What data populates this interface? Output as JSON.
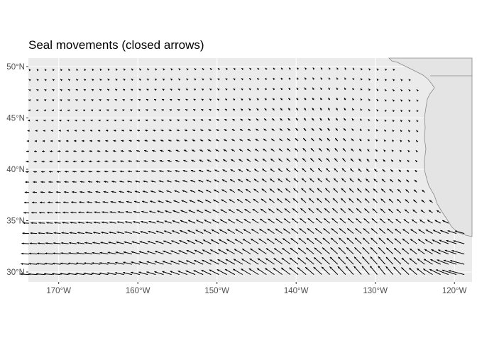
{
  "chart_data": {
    "type": "vector-field",
    "title": "Seal movements (closed arrows)",
    "xlabel": "",
    "ylabel": "",
    "x_ticks": [
      "170°W",
      "160°W",
      "150°W",
      "140°W",
      "130°W",
      "120°W"
    ],
    "x_tick_values": [
      -170,
      -160,
      -150,
      -140,
      -130,
      -120
    ],
    "y_ticks": [
      "30°N",
      "35°N",
      "40°N",
      "45°N",
      "50°N"
    ],
    "y_tick_values": [
      30,
      35,
      40,
      45,
      50
    ],
    "xlim": [
      -174.4,
      -117.7
    ],
    "ylim": [
      29.1,
      50.8
    ],
    "grid": true,
    "arrow_type": "closed",
    "lat_values": [
      29.75,
      30.75,
      31.75,
      32.75,
      33.75,
      34.75,
      35.75,
      36.75,
      37.75,
      38.75,
      39.75,
      40.75,
      41.75,
      42.75,
      43.75,
      44.75,
      45.75,
      46.75,
      47.75,
      48.75,
      49.75
    ],
    "long_start": -173.75,
    "long_step": 1,
    "row_last_long": [
      -118.75,
      -118.75,
      -118.75,
      -118.75,
      -118.75,
      -120.75,
      -121.75,
      -122.75,
      -123.75,
      -124.75,
      -124.75,
      -124.75,
      -124.75,
      -124.75,
      -124.75,
      -124.75,
      -124.75,
      -124.75,
      -124.75,
      -125.75,
      -127.75
    ],
    "sample_longs": [
      -173.75,
      -168.75,
      -163.75,
      -158.75,
      -153.75,
      -148.75,
      -143.75,
      -138.75,
      -133.75,
      -128.75,
      -123.75,
      -118.75
    ],
    "sample_lats": [
      29.75,
      31.75,
      33.75,
      35.75,
      37.75,
      39.75,
      41.75,
      43.75,
      45.75,
      47.75,
      49.75
    ],
    "delta_long": [
      [
        -1.1,
        -1.1,
        -1.15,
        -1.15,
        -1.2,
        -1.25,
        -1.2,
        -1.1,
        -1.0,
        -0.9,
        -1.0,
        -2.0
      ],
      [
        -1.0,
        -1.0,
        -1.05,
        -1.1,
        -1.1,
        -1.1,
        -1.05,
        -1.0,
        -0.9,
        -0.85,
        -0.9,
        -1.6
      ],
      [
        -0.85,
        -0.9,
        -0.9,
        -0.95,
        -0.95,
        -0.95,
        -0.9,
        -0.85,
        -0.8,
        -0.75,
        -0.8,
        -1.2
      ],
      [
        -0.7,
        -0.75,
        -0.8,
        -0.8,
        -0.85,
        -0.8,
        -0.75,
        -0.7,
        -0.65,
        -0.6,
        -0.5,
        -0.5
      ],
      [
        -0.55,
        -0.6,
        -0.6,
        -0.65,
        -0.65,
        -0.65,
        -0.6,
        -0.6,
        -0.55,
        -0.5,
        -0.35,
        -0.3
      ],
      [
        -0.45,
        -0.5,
        -0.5,
        -0.55,
        -0.55,
        -0.55,
        -0.55,
        -0.5,
        -0.45,
        -0.35,
        -0.2,
        -0.2
      ],
      [
        -0.35,
        -0.4,
        -0.4,
        -0.45,
        -0.45,
        -0.45,
        -0.45,
        -0.4,
        -0.35,
        -0.2,
        -0.1,
        -0.1
      ],
      [
        -0.2,
        -0.25,
        -0.3,
        -0.35,
        -0.35,
        -0.35,
        -0.35,
        -0.3,
        -0.25,
        -0.12,
        -0.05,
        -0.05
      ],
      [
        -0.1,
        -0.15,
        -0.2,
        -0.25,
        -0.25,
        -0.25,
        -0.25,
        -0.25,
        -0.2,
        -0.05,
        -0.03,
        -0.03
      ],
      [
        -0.05,
        -0.08,
        -0.12,
        -0.15,
        -0.18,
        -0.2,
        -0.2,
        -0.2,
        -0.15,
        -0.05,
        -0.03,
        -0.03
      ],
      [
        -0.02,
        -0.03,
        -0.05,
        -0.08,
        -0.1,
        -0.15,
        -0.15,
        -0.15,
        -0.1,
        -0.05,
        -0.02,
        -0.02
      ]
    ],
    "delta_lat": [
      [
        0.05,
        0.1,
        0.15,
        0.25,
        0.35,
        0.5,
        0.6,
        0.7,
        0.8,
        0.85,
        0.6,
        0.4
      ],
      [
        0.05,
        0.1,
        0.15,
        0.25,
        0.35,
        0.45,
        0.55,
        0.6,
        0.65,
        0.65,
        0.5,
        0.35
      ],
      [
        0.03,
        0.08,
        0.12,
        0.2,
        0.3,
        0.4,
        0.45,
        0.5,
        0.5,
        0.5,
        0.4,
        0.25
      ],
      [
        0.02,
        0.06,
        0.1,
        0.16,
        0.25,
        0.34,
        0.4,
        0.45,
        0.45,
        0.42,
        0.3,
        0.2
      ],
      [
        0.02,
        0.05,
        0.08,
        0.12,
        0.2,
        0.28,
        0.35,
        0.4,
        0.4,
        0.35,
        0.25,
        0.2
      ],
      [
        0.0,
        0.03,
        0.06,
        0.1,
        0.15,
        0.22,
        0.3,
        0.35,
        0.35,
        0.25,
        0.15,
        0.15
      ],
      [
        0.0,
        0.02,
        0.04,
        0.08,
        0.12,
        0.18,
        0.25,
        0.3,
        0.3,
        0.15,
        0.08,
        0.08
      ],
      [
        0.0,
        0.02,
        0.04,
        0.06,
        0.1,
        0.15,
        0.2,
        0.25,
        0.25,
        0.1,
        0.05,
        0.05
      ],
      [
        0.0,
        0.02,
        0.04,
        0.06,
        0.08,
        0.12,
        0.18,
        0.22,
        0.22,
        0.05,
        0.03,
        0.03
      ],
      [
        0.02,
        0.03,
        0.05,
        0.06,
        0.08,
        0.1,
        0.15,
        0.2,
        0.2,
        0.05,
        0.02,
        0.02
      ],
      [
        0.02,
        0.03,
        0.05,
        0.06,
        0.08,
        0.1,
        0.12,
        0.15,
        0.15,
        0.03,
        0.01,
        0.01
      ]
    ]
  }
}
